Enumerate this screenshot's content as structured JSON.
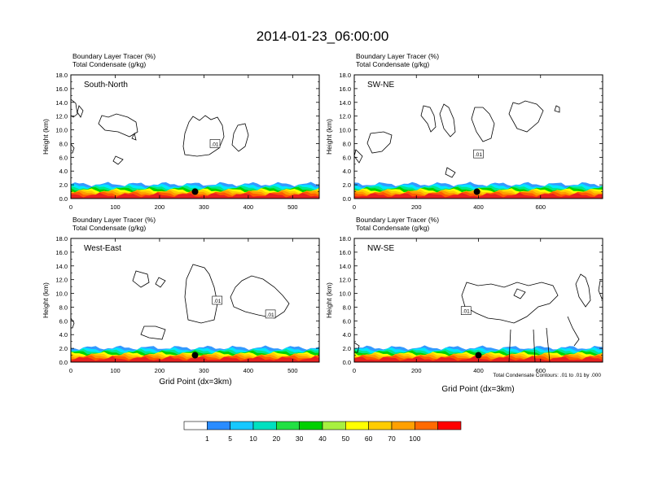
{
  "title": "2014-01-23_06:00:00",
  "field_labels": [
    "Boundary Layer Tracer   (%)",
    "Total Condensate   (g/kg)"
  ],
  "ylabel": "Height (km)",
  "xlabel": "Grid Point (dx=3km)",
  "contour_info": "Total Condensate Contours: .01 to .01 by .000",
  "colors": {
    "tracer": [
      "#e82020",
      "#ff5a00",
      "#ff9a00",
      "#ffcc00",
      "#ffff00",
      "#a0e640",
      "#00d200",
      "#00e88a",
      "#00e6ff",
      "#3399ff",
      "#1a6be6"
    ],
    "contour": "#000000",
    "marker": "#000000"
  },
  "colorbar": {
    "labels": [
      "1",
      "5",
      "10",
      "20",
      "30",
      "40",
      "50",
      "60",
      "70",
      "100"
    ],
    "colors": [
      "#ffffff",
      "#2a8cff",
      "#17c8ff",
      "#00e0c0",
      "#22e044",
      "#00d000",
      "#a8f040",
      "#ffff00",
      "#ffcc00",
      "#ffa000",
      "#ff6a00",
      "#ff0000"
    ]
  },
  "chart_data": [
    {
      "type": "heatmap",
      "panel_label": "South-North",
      "ylim": [
        0,
        18
      ],
      "xlim": [
        0,
        560
      ],
      "yticks": [
        "0.0",
        "2.0",
        "4.0",
        "6.0",
        "8.0",
        "10.0",
        "12.0",
        "14.0",
        "16.0",
        "18.0"
      ],
      "xticks": [
        0,
        100,
        200,
        300,
        400,
        500
      ],
      "contour_labels": [
        {
          "text": ".01",
          "x": 325,
          "y": 8.0
        }
      ],
      "station_marker": {
        "x": 280,
        "y": 1.0
      }
    },
    {
      "type": "heatmap",
      "panel_label": "SW-NE",
      "ylim": [
        0,
        18
      ],
      "xlim": [
        0,
        800
      ],
      "yticks": [
        "0.0",
        "2.0",
        "4.0",
        "6.0",
        "8.0",
        "10.0",
        "12.0",
        "14.0",
        "16.0",
        "18.0"
      ],
      "xticks": [
        0,
        200,
        400,
        600
      ],
      "contour_labels": [
        {
          "text": ".01",
          "x": 400,
          "y": 6.5
        }
      ],
      "station_marker": {
        "x": 395,
        "y": 1.0
      }
    },
    {
      "type": "heatmap",
      "panel_label": "West-East",
      "ylim": [
        0,
        18
      ],
      "xlim": [
        0,
        560
      ],
      "yticks": [
        "0.0",
        "2.0",
        "4.0",
        "6.0",
        "8.0",
        "10.0",
        "12.0",
        "14.0",
        "16.0",
        "18.0"
      ],
      "xticks": [
        0,
        100,
        200,
        300,
        400,
        500
      ],
      "contour_labels": [
        {
          "text": ".01",
          "x": 330,
          "y": 9.0
        },
        {
          "text": ".01",
          "x": 450,
          "y": 7.0
        }
      ],
      "station_marker": {
        "x": 280,
        "y": 1.0
      }
    },
    {
      "type": "heatmap",
      "panel_label": "NW-SE",
      "ylim": [
        0,
        18
      ],
      "xlim": [
        0,
        800
      ],
      "yticks": [
        "0.0",
        "2.0",
        "4.0",
        "6.0",
        "8.0",
        "10.0",
        "12.0",
        "14.0",
        "16.0",
        "18.0"
      ],
      "xticks": [
        0,
        200,
        400,
        600
      ],
      "contour_labels": [
        {
          "text": ".01",
          "x": 360,
          "y": 7.5
        }
      ],
      "station_marker": {
        "x": 400,
        "y": 1.0
      }
    }
  ]
}
